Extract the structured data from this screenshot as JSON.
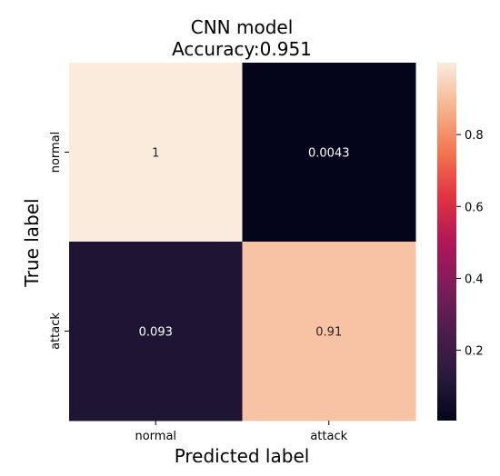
{
  "chart_data": {
    "type": "heatmap",
    "title": "CNN model",
    "subtitle": "Accuracy:0.951",
    "xlabel": "Predicted label",
    "ylabel": "True label",
    "x_categories": [
      "normal",
      "attack"
    ],
    "y_categories": [
      "normal",
      "attack"
    ],
    "values": [
      [
        1,
        0.0043
      ],
      [
        0.093,
        0.91
      ]
    ],
    "annotations": [
      [
        "1",
        "0.0043"
      ],
      [
        "0.093",
        "0.91"
      ]
    ],
    "colorbar": {
      "colormap": "rocket",
      "range": [
        0.0043,
        1
      ],
      "ticks": [
        0.2,
        0.4,
        0.6,
        0.8
      ],
      "tick_labels": [
        "0.2",
        "0.4",
        "0.6",
        "0.8"
      ]
    }
  }
}
